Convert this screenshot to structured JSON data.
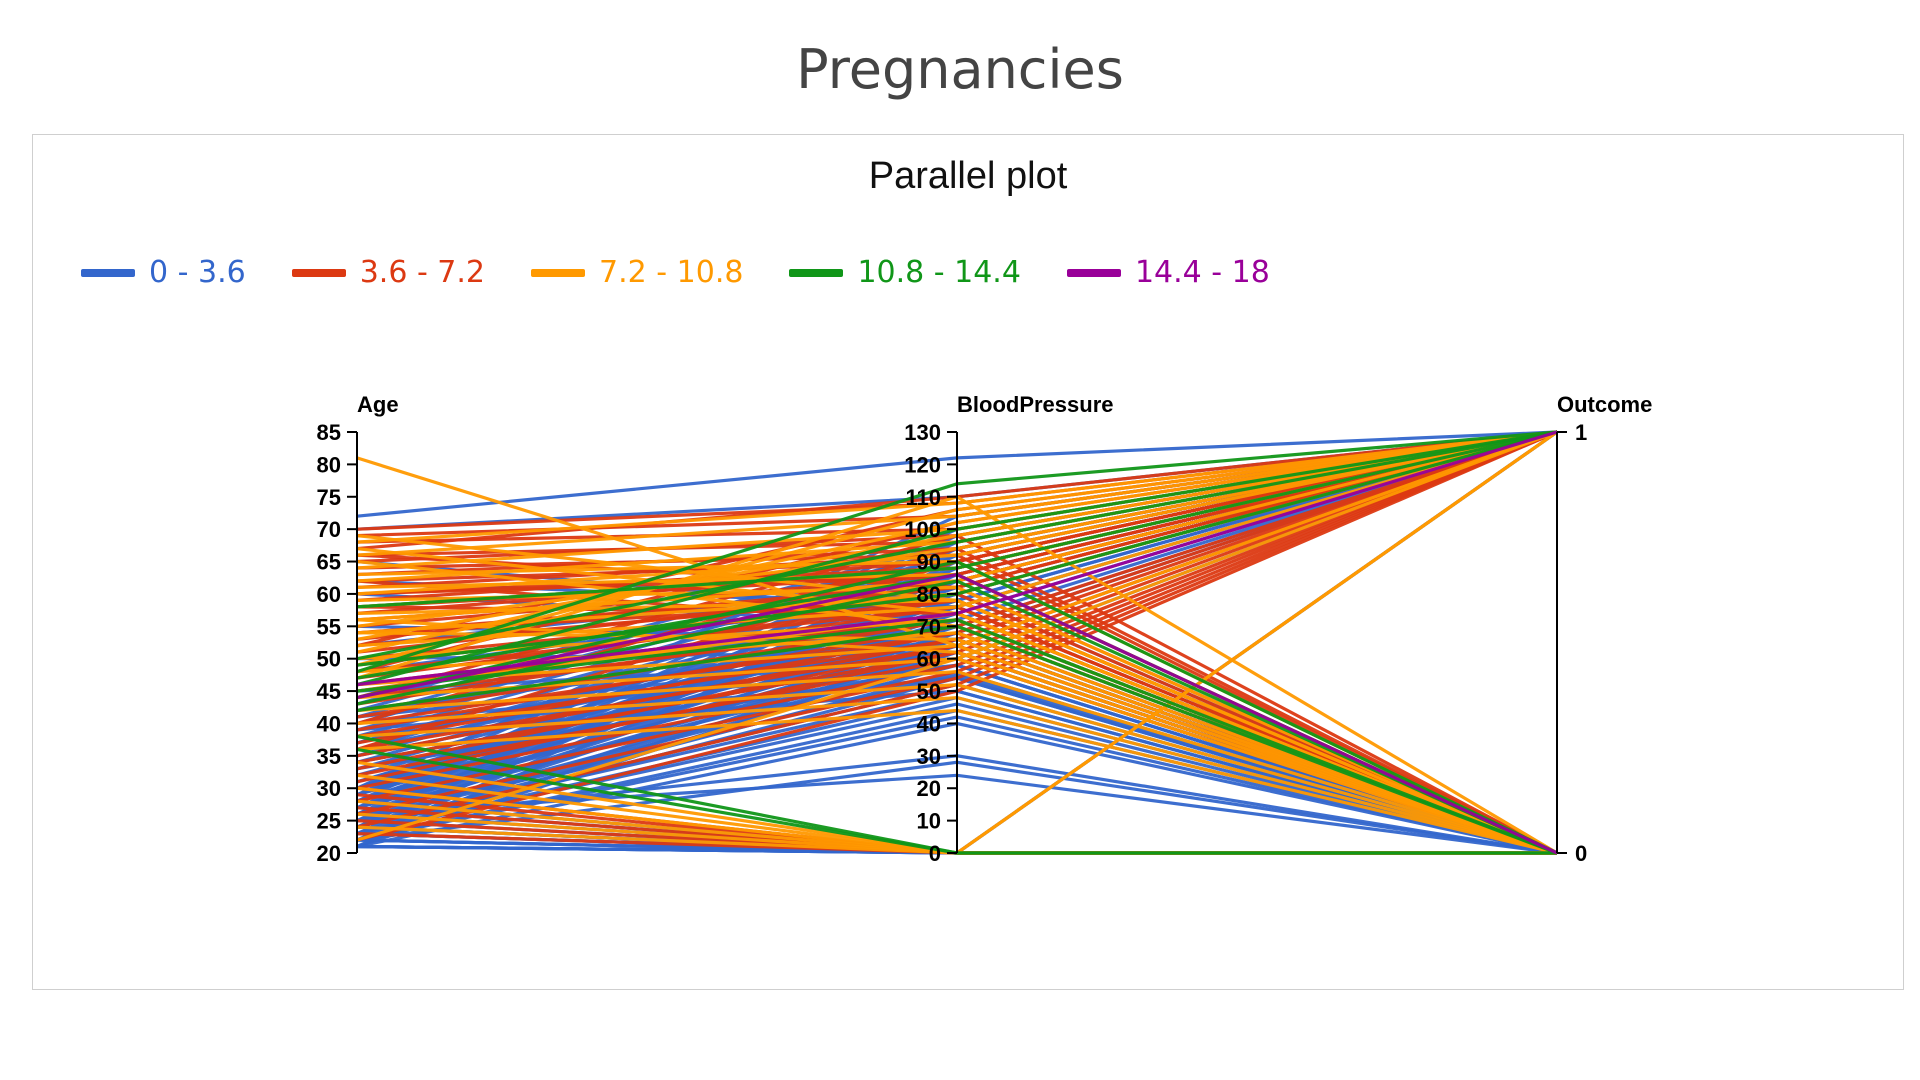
{
  "page": {
    "title": "Pregnancies"
  },
  "chart_data": {
    "type": "parallel",
    "title": "Parallel plot",
    "legend_position": "top-left",
    "legend": [
      {
        "label": "0 - 3.6",
        "color": "#3366cc"
      },
      {
        "label": "3.6 - 7.2",
        "color": "#dc3912"
      },
      {
        "label": "7.2 - 10.8",
        "color": "#ff9900"
      },
      {
        "label": "10.8 - 14.4",
        "color": "#109618"
      },
      {
        "label": "14.4 - 18",
        "color": "#990099"
      }
    ],
    "axes": [
      {
        "name": "Age",
        "range": [
          20,
          85
        ],
        "ticks": [
          "20",
          "25",
          "30",
          "35",
          "40",
          "45",
          "50",
          "55",
          "60",
          "65",
          "70",
          "75",
          "80",
          "85"
        ]
      },
      {
        "name": "BloodPressure",
        "range": [
          0,
          130
        ],
        "ticks": [
          "0",
          "10",
          "20",
          "30",
          "40",
          "50",
          "60",
          "70",
          "80",
          "90",
          "100",
          "110",
          "120",
          "130"
        ]
      },
      {
        "name": "Outcome",
        "range": [
          0,
          1
        ],
        "ticks": [
          "0",
          "1"
        ]
      }
    ],
    "series": [
      {
        "group": 0,
        "lines": [
          [
            21,
            0,
            0
          ],
          [
            22,
            0,
            0
          ],
          [
            23,
            0,
            0
          ],
          [
            21,
            0,
            0
          ],
          [
            24,
            0,
            1
          ],
          [
            72,
            122,
            1
          ],
          [
            70,
            110,
            1
          ],
          [
            25,
            30,
            0
          ],
          [
            26,
            24,
            0
          ],
          [
            22,
            28,
            0
          ],
          [
            23,
            48,
            0
          ],
          [
            24,
            52,
            0
          ],
          [
            25,
            55,
            0
          ],
          [
            27,
            60,
            0
          ],
          [
            28,
            64,
            0
          ],
          [
            29,
            68,
            0
          ],
          [
            30,
            70,
            0
          ],
          [
            31,
            72,
            0
          ],
          [
            32,
            74,
            0
          ],
          [
            33,
            76,
            0
          ],
          [
            34,
            78,
            1
          ],
          [
            35,
            80,
            1
          ],
          [
            36,
            82,
            1
          ],
          [
            37,
            84,
            1
          ],
          [
            38,
            86,
            1
          ],
          [
            39,
            88,
            1
          ],
          [
            40,
            90,
            1
          ],
          [
            41,
            92,
            1
          ],
          [
            42,
            94,
            1
          ],
          [
            43,
            96,
            1
          ],
          [
            22,
            44,
            0
          ],
          [
            23,
            46,
            0
          ],
          [
            24,
            50,
            0
          ],
          [
            25,
            58,
            0
          ],
          [
            26,
            62,
            0
          ],
          [
            27,
            66,
            0
          ],
          [
            28,
            70,
            1
          ],
          [
            29,
            72,
            1
          ],
          [
            30,
            74,
            1
          ],
          [
            31,
            76,
            1
          ],
          [
            21,
            40,
            0
          ],
          [
            22,
            42,
            0
          ],
          [
            23,
            54,
            0
          ],
          [
            24,
            56,
            0
          ],
          [
            25,
            60,
            1
          ],
          [
            26,
            64,
            1
          ],
          [
            27,
            68,
            1
          ],
          [
            28,
            78,
            1
          ],
          [
            29,
            82,
            1
          ],
          [
            30,
            86,
            1
          ],
          [
            45,
            60,
            0
          ],
          [
            50,
            62,
            0
          ],
          [
            55,
            66,
            0
          ],
          [
            60,
            70,
            0
          ],
          [
            65,
            74,
            0
          ],
          [
            48,
            80,
            1
          ],
          [
            52,
            84,
            1
          ],
          [
            58,
            88,
            1
          ],
          [
            62,
            76,
            1
          ],
          [
            46,
            72,
            0
          ],
          [
            21,
            62,
            0
          ],
          [
            22,
            64,
            0
          ],
          [
            23,
            66,
            0
          ],
          [
            24,
            68,
            0
          ],
          [
            25,
            70,
            0
          ],
          [
            26,
            72,
            0
          ],
          [
            27,
            74,
            0
          ],
          [
            28,
            76,
            0
          ],
          [
            29,
            78,
            0
          ],
          [
            30,
            80,
            0
          ],
          [
            21,
            84,
            1
          ],
          [
            22,
            86,
            1
          ],
          [
            23,
            88,
            1
          ],
          [
            24,
            90,
            1
          ],
          [
            25,
            92,
            1
          ],
          [
            26,
            94,
            1
          ],
          [
            27,
            96,
            1
          ],
          [
            28,
            98,
            1
          ],
          [
            29,
            100,
            1
          ],
          [
            30,
            104,
            1
          ],
          [
            33,
            58,
            0
          ],
          [
            34,
            62,
            0
          ],
          [
            35,
            66,
            0
          ],
          [
            36,
            70,
            0
          ],
          [
            37,
            74,
            0
          ],
          [
            38,
            50,
            0
          ],
          [
            39,
            54,
            0
          ],
          [
            40,
            58,
            0
          ],
          [
            41,
            62,
            0
          ],
          [
            42,
            66,
            0
          ],
          [
            21,
            0,
            1
          ],
          [
            22,
            0,
            1
          ],
          [
            23,
            0,
            0
          ],
          [
            24,
            0,
            0
          ],
          [
            25,
            0,
            0
          ],
          [
            26,
            0,
            0
          ],
          [
            27,
            0,
            0
          ],
          [
            28,
            0,
            0
          ],
          [
            21,
            0,
            0
          ],
          [
            22,
            0,
            0
          ]
        ]
      },
      {
        "group": 1,
        "lines": [
          [
            70,
            108,
            1
          ],
          [
            68,
            100,
            1
          ],
          [
            66,
            96,
            1
          ],
          [
            64,
            92,
            1
          ],
          [
            62,
            90,
            1
          ],
          [
            60,
            88,
            1
          ],
          [
            58,
            86,
            1
          ],
          [
            56,
            84,
            1
          ],
          [
            54,
            82,
            1
          ],
          [
            52,
            80,
            1
          ],
          [
            50,
            78,
            0
          ],
          [
            48,
            76,
            0
          ],
          [
            46,
            74,
            0
          ],
          [
            44,
            72,
            0
          ],
          [
            42,
            70,
            0
          ],
          [
            40,
            68,
            0
          ],
          [
            38,
            66,
            0
          ],
          [
            36,
            64,
            0
          ],
          [
            34,
            62,
            0
          ],
          [
            32,
            60,
            0
          ],
          [
            30,
            58,
            1
          ],
          [
            28,
            56,
            1
          ],
          [
            26,
            54,
            1
          ],
          [
            24,
            52,
            1
          ],
          [
            22,
            50,
            1
          ],
          [
            67,
            110,
            1
          ],
          [
            69,
            104,
            1
          ],
          [
            65,
            98,
            0
          ],
          [
            63,
            94,
            0
          ],
          [
            61,
            92,
            0
          ],
          [
            59,
            90,
            1
          ],
          [
            57,
            88,
            1
          ],
          [
            55,
            86,
            1
          ],
          [
            53,
            84,
            1
          ],
          [
            51,
            82,
            1
          ],
          [
            49,
            80,
            0
          ],
          [
            47,
            78,
            0
          ],
          [
            45,
            76,
            0
          ],
          [
            43,
            74,
            0
          ],
          [
            41,
            72,
            0
          ],
          [
            39,
            70,
            1
          ],
          [
            37,
            68,
            1
          ],
          [
            35,
            66,
            1
          ],
          [
            33,
            64,
            1
          ],
          [
            31,
            62,
            1
          ],
          [
            29,
            0,
            0
          ],
          [
            27,
            0,
            0
          ],
          [
            25,
            0,
            0
          ],
          [
            23,
            0,
            0
          ],
          [
            30,
            0,
            0
          ],
          [
            62,
            70,
            0
          ],
          [
            58,
            74,
            0
          ],
          [
            54,
            78,
            0
          ],
          [
            66,
            82,
            0
          ],
          [
            60,
            86,
            0
          ],
          [
            36,
            90,
            1
          ],
          [
            40,
            94,
            1
          ],
          [
            44,
            98,
            1
          ],
          [
            48,
            102,
            1
          ],
          [
            52,
            106,
            1
          ]
        ]
      },
      {
        "group": 2,
        "lines": [
          [
            81,
            64,
            1
          ],
          [
            68,
            108,
            1
          ],
          [
            66,
            104,
            1
          ],
          [
            64,
            100,
            1
          ],
          [
            62,
            96,
            1
          ],
          [
            60,
            92,
            1
          ],
          [
            58,
            88,
            1
          ],
          [
            56,
            84,
            1
          ],
          [
            54,
            80,
            1
          ],
          [
            52,
            76,
            1
          ],
          [
            50,
            72,
            0
          ],
          [
            48,
            68,
            0
          ],
          [
            46,
            64,
            0
          ],
          [
            44,
            60,
            0
          ],
          [
            42,
            56,
            0
          ],
          [
            40,
            52,
            0
          ],
          [
            38,
            48,
            0
          ],
          [
            36,
            44,
            0
          ],
          [
            34,
            0,
            1
          ],
          [
            32,
            0,
            1
          ],
          [
            57,
            78,
            0
          ],
          [
            59,
            82,
            0
          ],
          [
            61,
            86,
            0
          ],
          [
            63,
            90,
            0
          ],
          [
            55,
            94,
            1
          ],
          [
            53,
            98,
            1
          ],
          [
            51,
            102,
            1
          ],
          [
            49,
            106,
            1
          ],
          [
            47,
            110,
            0
          ],
          [
            45,
            74,
            0
          ],
          [
            28,
            0,
            0
          ],
          [
            30,
            0,
            0
          ],
          [
            26,
            0,
            0
          ],
          [
            24,
            0,
            0
          ],
          [
            22,
            60,
            1
          ],
          [
            65,
            70,
            0
          ],
          [
            67,
            74,
            0
          ],
          [
            69,
            78,
            0
          ],
          [
            56,
            62,
            0
          ],
          [
            54,
            66,
            0
          ]
        ]
      },
      {
        "group": 3,
        "lines": [
          [
            48,
            114,
            1
          ],
          [
            46,
            100,
            1
          ],
          [
            44,
            90,
            0
          ],
          [
            47,
            86,
            0
          ],
          [
            49,
            80,
            1
          ],
          [
            45,
            72,
            0
          ],
          [
            43,
            84,
            0
          ],
          [
            50,
            96,
            1
          ],
          [
            36,
            0,
            0
          ],
          [
            38,
            0,
            0
          ],
          [
            42,
            70,
            0
          ],
          [
            58,
            88,
            1
          ]
        ]
      },
      {
        "group": 4,
        "lines": [
          [
            46,
            74,
            1
          ],
          [
            44,
            86,
            0
          ]
        ]
      }
    ]
  }
}
